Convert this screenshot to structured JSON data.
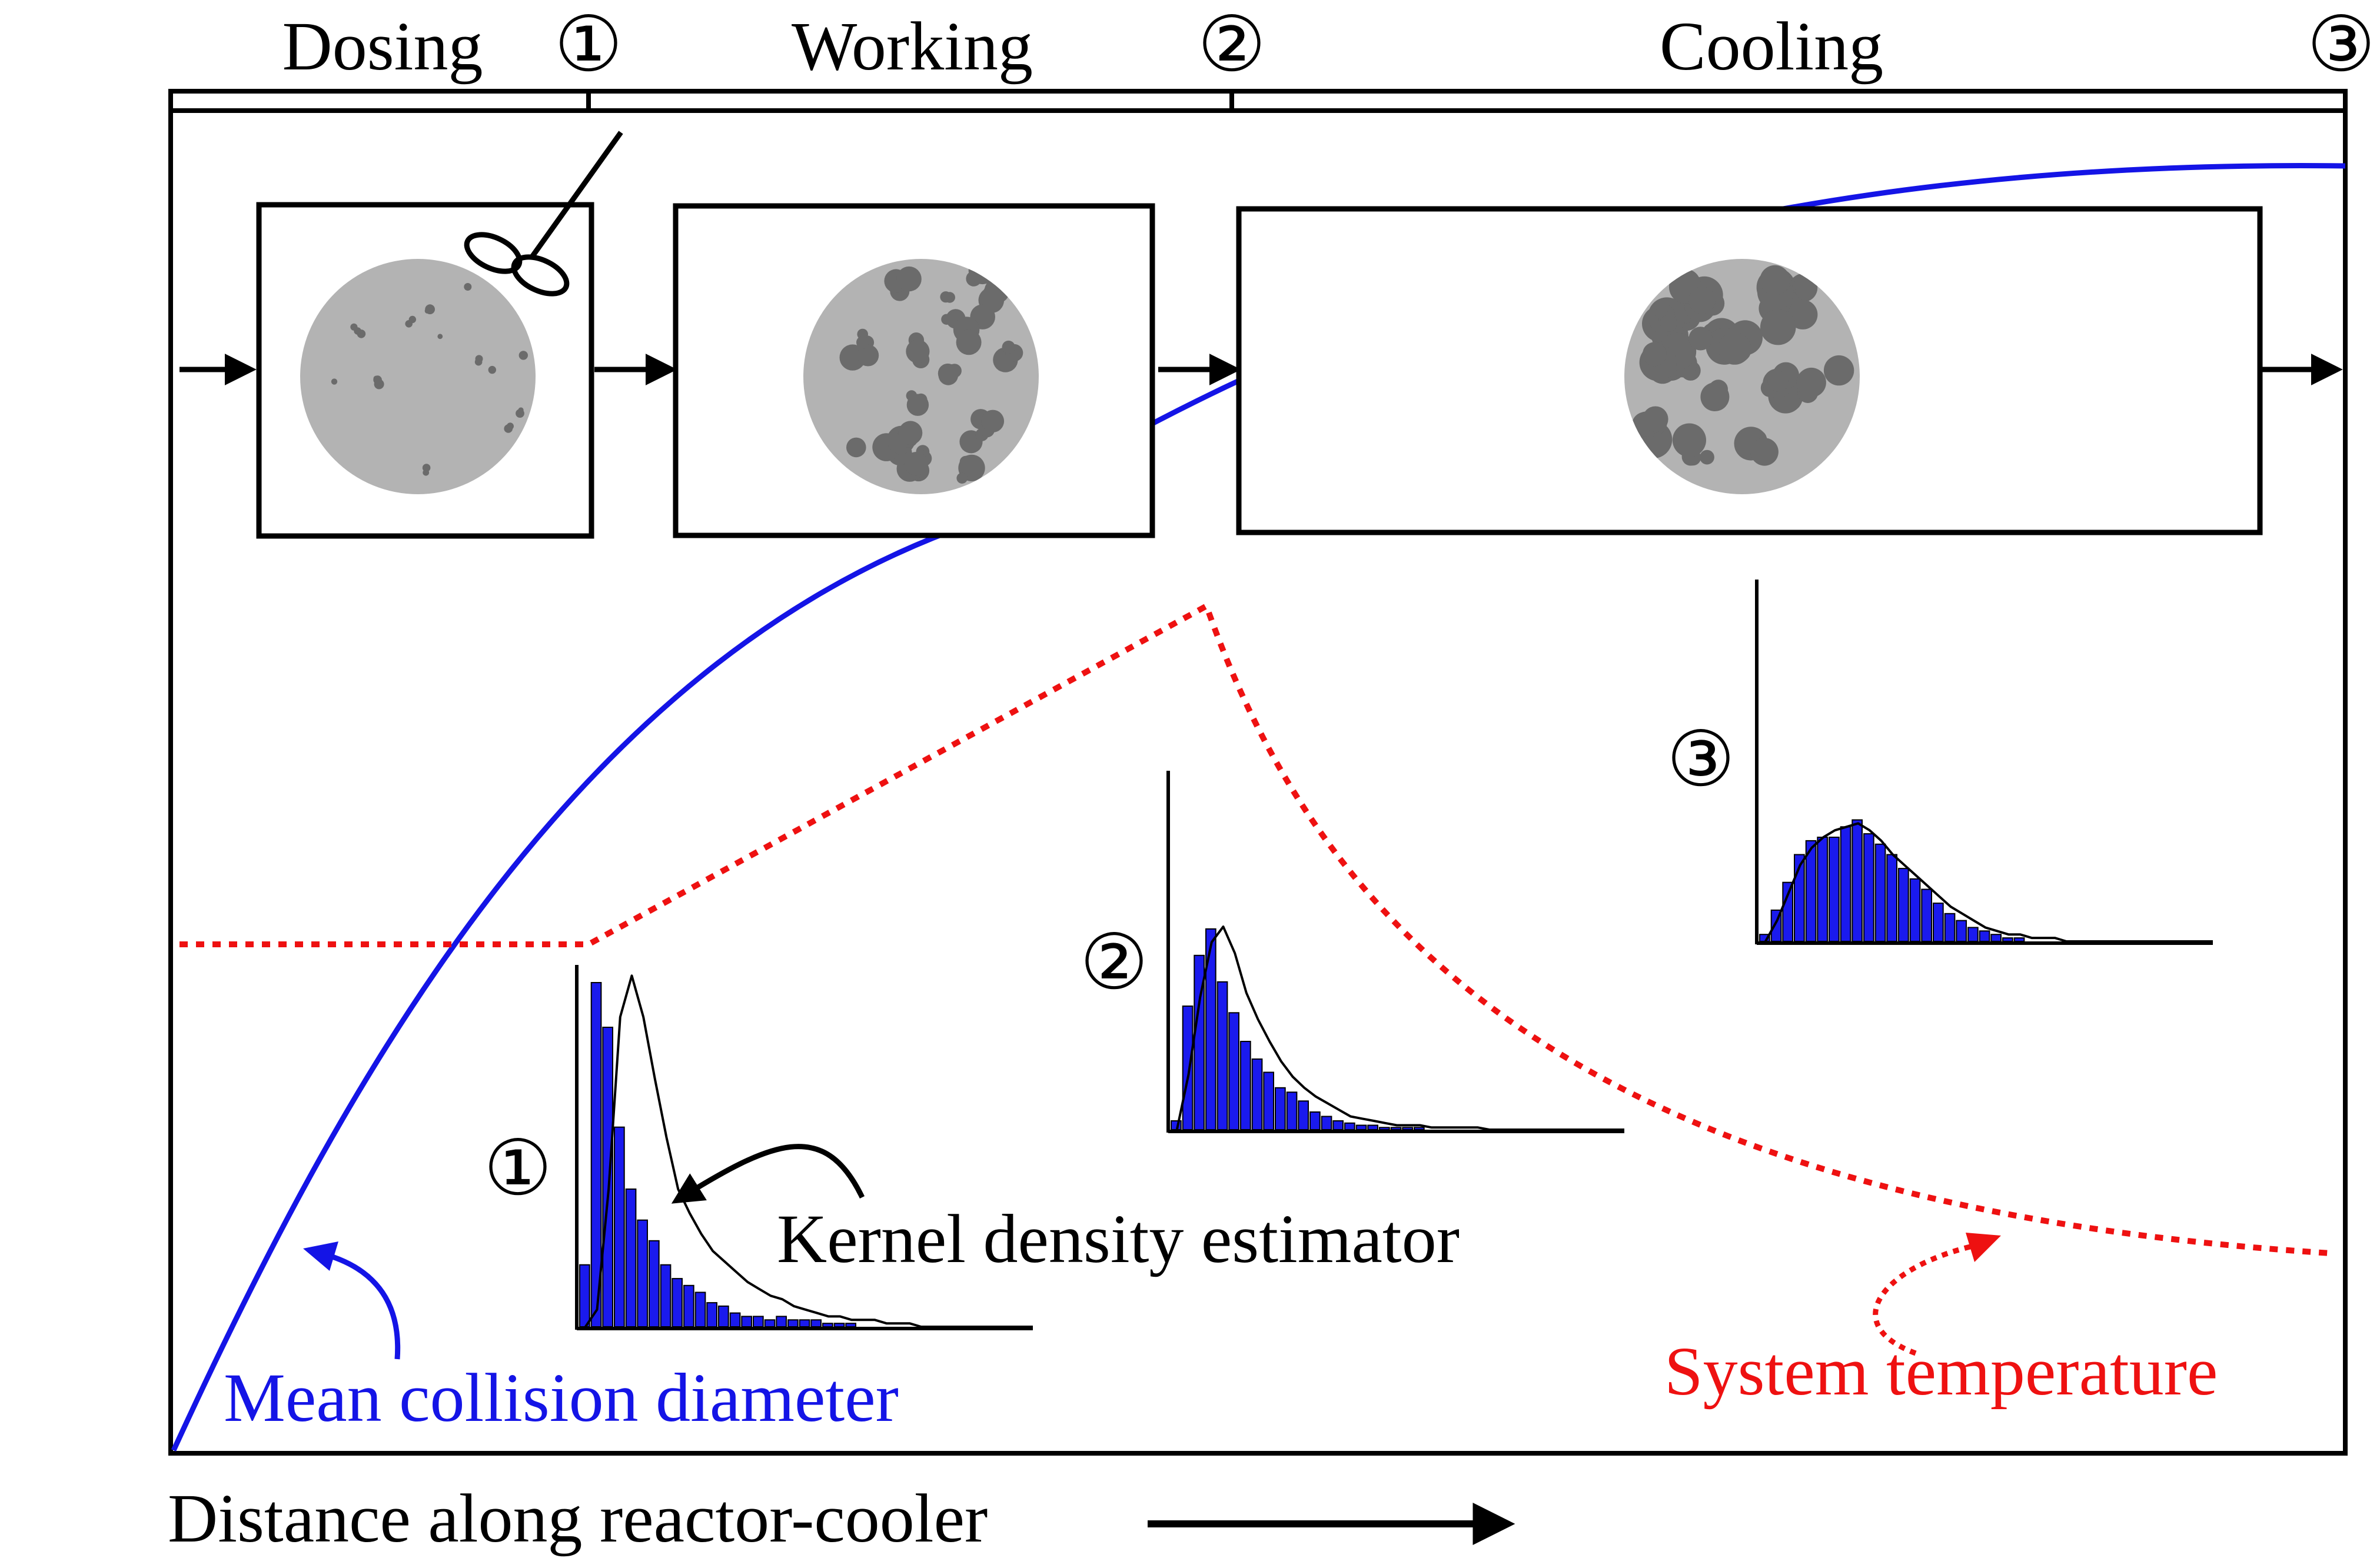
{
  "stages": {
    "dosing_label": "Dosing",
    "working_label": "Working",
    "cooling_label": "Cooling",
    "marker_1": "①",
    "marker_2": "②",
    "marker_3": "③"
  },
  "histograms": {
    "marker_1": "①",
    "marker_2": "②",
    "marker_3": "③",
    "hist_1": {
      "bars": [
        0.18,
        1.0,
        0.87,
        0.58,
        0.4,
        0.31,
        0.25,
        0.18,
        0.14,
        0.12,
        0.1,
        0.07,
        0.06,
        0.04,
        0.03,
        0.03,
        0.02,
        0.03,
        0.02,
        0.02,
        0.02,
        0.01,
        0.01,
        0.01,
        0.0,
        0.0,
        0.0,
        0.0,
        0.0,
        0.0
      ],
      "kde": [
        0.0,
        0.05,
        0.4,
        0.9,
        1.02,
        0.9,
        0.72,
        0.55,
        0.4,
        0.33,
        0.27,
        0.22,
        0.19,
        0.16,
        0.13,
        0.11,
        0.09,
        0.08,
        0.06,
        0.05,
        0.04,
        0.03,
        0.03,
        0.02,
        0.02,
        0.02,
        0.01,
        0.01,
        0.01,
        0.0
      ]
    },
    "hist_2": {
      "bars": [
        0.04,
        0.56,
        0.79,
        0.91,
        0.67,
        0.53,
        0.4,
        0.32,
        0.26,
        0.19,
        0.17,
        0.13,
        0.08,
        0.06,
        0.04,
        0.03,
        0.02,
        0.02,
        0.01,
        0.01,
        0.01,
        0.01,
        0.0,
        0.0,
        0.0,
        0.0,
        0.0,
        0.0,
        0.0,
        0.0
      ],
      "kde": [
        0.0,
        0.25,
        0.6,
        0.85,
        0.92,
        0.8,
        0.62,
        0.5,
        0.4,
        0.31,
        0.24,
        0.19,
        0.15,
        0.12,
        0.09,
        0.06,
        0.05,
        0.04,
        0.03,
        0.02,
        0.02,
        0.02,
        0.01,
        0.01,
        0.01,
        0.01,
        0.01,
        0.0,
        0.0,
        0.0
      ]
    },
    "hist_3": {
      "bars": [
        0.02,
        0.09,
        0.17,
        0.25,
        0.29,
        0.3,
        0.3,
        0.33,
        0.35,
        0.31,
        0.28,
        0.25,
        0.21,
        0.18,
        0.15,
        0.11,
        0.08,
        0.06,
        0.04,
        0.03,
        0.02,
        0.01,
        0.01,
        0.0,
        0.0,
        0.0,
        0.0,
        0.0,
        0.0,
        0.0
      ],
      "kde": [
        0.0,
        0.06,
        0.14,
        0.22,
        0.27,
        0.3,
        0.32,
        0.33,
        0.34,
        0.32,
        0.29,
        0.25,
        0.22,
        0.19,
        0.16,
        0.13,
        0.1,
        0.08,
        0.06,
        0.04,
        0.03,
        0.02,
        0.02,
        0.01,
        0.01,
        0.01,
        0.0,
        0.0,
        0.0,
        0.0
      ]
    }
  },
  "annotations": {
    "kde_label": "Kernel density estimator",
    "mean_diameter_label": "Mean collision diameter",
    "system_temperature_label": "System temperature",
    "x_axis_label": "Distance along reactor-cooler"
  },
  "colors": {
    "mean_diameter": "#1414e6",
    "system_temperature": "#ee1111",
    "bars": "#1a1aee",
    "particle_disk": "#b3b3b3",
    "aggregate": "#6b6b6b",
    "ink": "#000000"
  },
  "icons": {
    "dosing_nozzle": "dosing-nozzle-icon",
    "flow_arrow": "flow-arrow-icon"
  }
}
